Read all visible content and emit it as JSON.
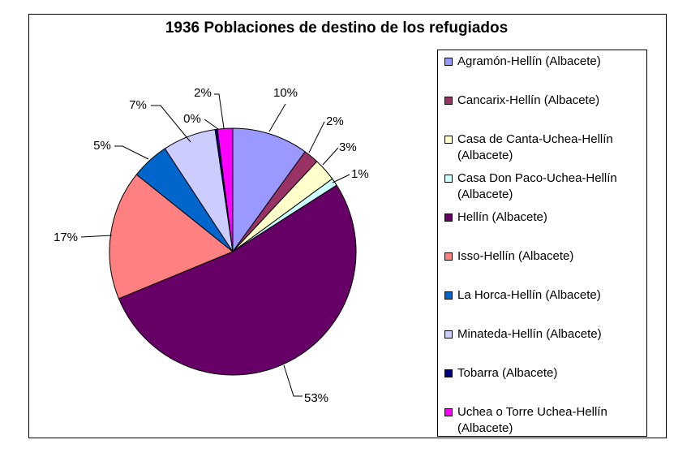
{
  "chart_data": {
    "type": "pie",
    "title": "1936 Poblaciones de destino de los refugiados",
    "legend_position": "right",
    "slices": [
      {
        "label": "Agramón-Hellín (Albacete)",
        "value": 10,
        "display": "10%",
        "color": "#9999ff"
      },
      {
        "label": "Cancarix-Hellín (Albacete)",
        "value": 2,
        "display": "2%",
        "color": "#993366"
      },
      {
        "label": "Casa de Canta-Uchea-Hellín (Albacete)",
        "value": 3,
        "display": "3%",
        "color": "#ffffcc"
      },
      {
        "label": "Casa Don Paco-Uchea-Hellín (Albacete)",
        "value": 1,
        "display": "1%",
        "color": "#ccffff"
      },
      {
        "label": "Hellín (Albacete)",
        "value": 53,
        "display": "53%",
        "color": "#660066"
      },
      {
        "label": "Isso-Hellín (Albacete)",
        "value": 17,
        "display": "17%",
        "color": "#ff8080"
      },
      {
        "label": "La Horca-Hellín (Albacete)",
        "value": 5,
        "display": "5%",
        "color": "#0066cc"
      },
      {
        "label": "Minateda-Hellín (Albacete)",
        "value": 7,
        "display": "7%",
        "color": "#ccccff"
      },
      {
        "label": "Tobarra (Albacete)",
        "value": 0.3,
        "display": "0%",
        "color": "#000080"
      },
      {
        "label": "Uchea o Torre Uchea-Hellín (Albacete)",
        "value": 2,
        "display": "2%",
        "color": "#ff00ff"
      }
    ]
  }
}
